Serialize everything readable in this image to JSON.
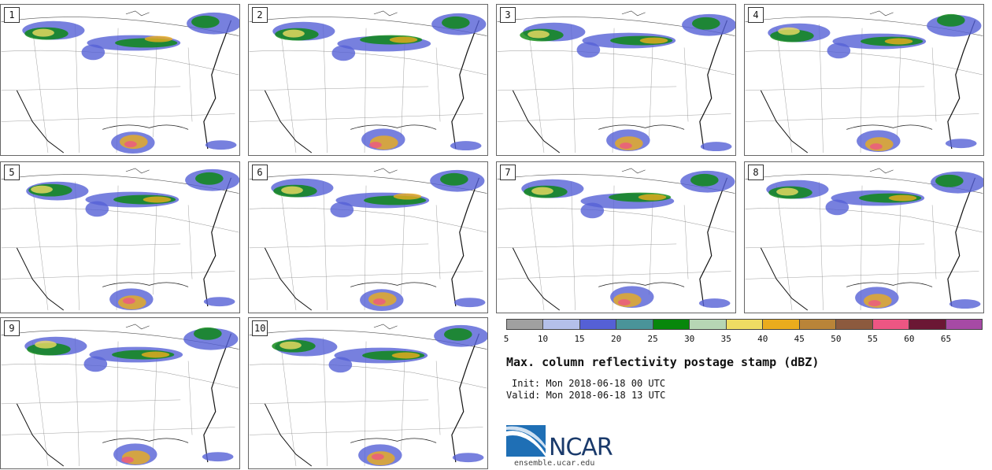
{
  "panels": [
    {
      "label": "1"
    },
    {
      "label": "2"
    },
    {
      "label": "3"
    },
    {
      "label": "4"
    },
    {
      "label": "5"
    },
    {
      "label": "6"
    },
    {
      "label": "7"
    },
    {
      "label": "8"
    },
    {
      "label": "9"
    },
    {
      "label": "10"
    }
  ],
  "colorbar": {
    "colors": [
      "#a0a0a0",
      "#b4c0ea",
      "#5560d6",
      "#4a9499",
      "#07870b",
      "#b6d6b4",
      "#eedc63",
      "#eaac1d",
      "#b98438",
      "#8c5a3e",
      "#ed5683",
      "#6b1734",
      "#a64aa5"
    ],
    "ticks": [
      "5",
      "10",
      "15",
      "20",
      "25",
      "30",
      "35",
      "40",
      "45",
      "50",
      "55",
      "60",
      "65"
    ]
  },
  "title": "Max. column reflectivity postage stamp (dBZ)",
  "init": "Init: Mon 2018-06-18 00 UTC",
  "valid": "Valid: Mon 2018-06-18 13 UTC",
  "logo": {
    "text": "NCAR",
    "url": "ensemble.ucar.edu"
  }
}
